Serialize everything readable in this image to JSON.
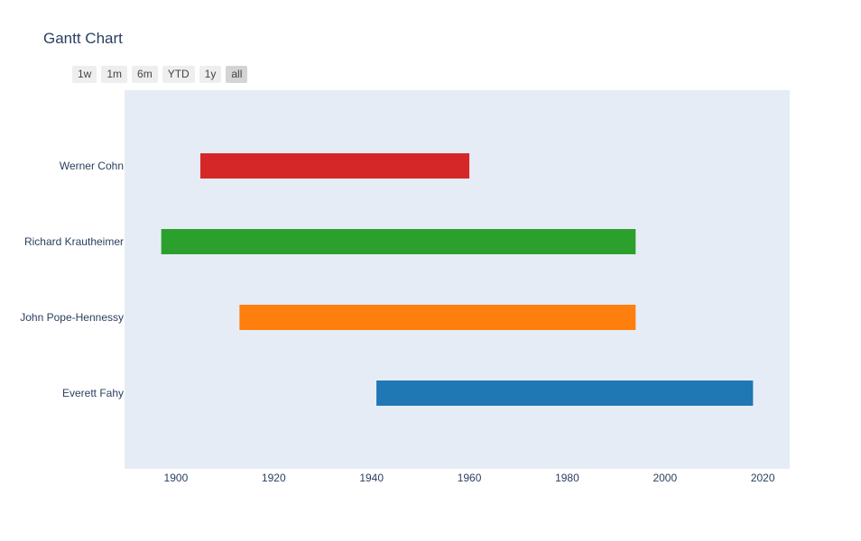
{
  "title": "Gantt Chart",
  "range_selector": {
    "buttons": [
      "1w",
      "1m",
      "6m",
      "YTD",
      "1y",
      "all"
    ],
    "active": "all"
  },
  "chart_data": {
    "type": "gantt",
    "title": "Gantt Chart",
    "xlabel": "",
    "ylabel": "",
    "xlim": [
      1889.5,
      2025.5
    ],
    "x_ticks": [
      1900,
      1920,
      1940,
      1960,
      1980,
      2000,
      2020
    ],
    "tasks": [
      {
        "name": "Werner Cohn",
        "start": 1905,
        "end": 1960,
        "color": "#d62728"
      },
      {
        "name": "Richard Krautheimer",
        "start": 1897,
        "end": 1994,
        "color": "#2ca02c"
      },
      {
        "name": "John Pope-Hennessy",
        "start": 1913,
        "end": 1994,
        "color": "#ff7f0e"
      },
      {
        "name": "Everett Fahy",
        "start": 1941,
        "end": 2018,
        "color": "#1f77b4"
      }
    ],
    "plot_background": "#e5ecf6",
    "grid": false
  }
}
